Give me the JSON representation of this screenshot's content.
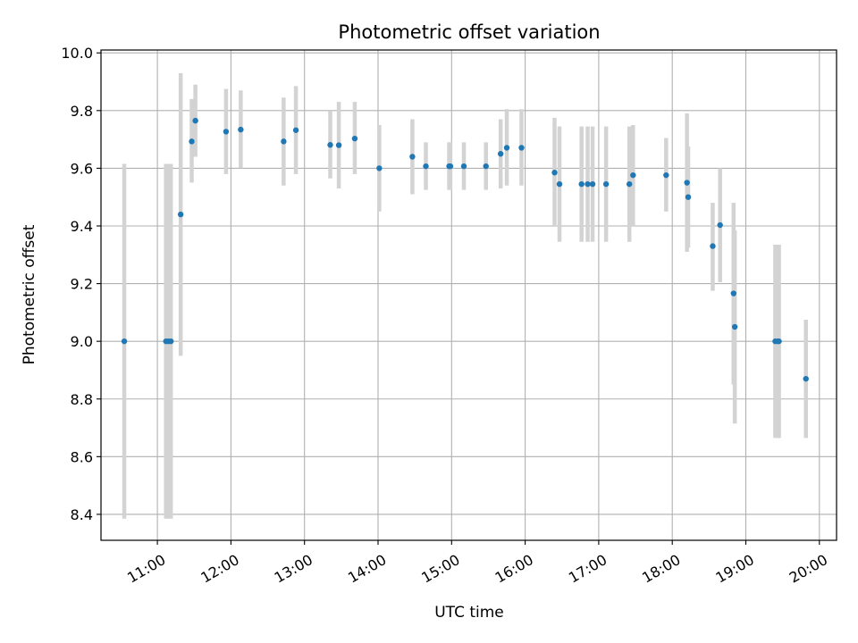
{
  "chart_data": {
    "type": "scatter",
    "title": "Photometric offset variation",
    "xlabel": "UTC time",
    "ylabel": "Photometric offset",
    "xlim": [
      "10:14",
      "20:14"
    ],
    "ylim": [
      8.31,
      10.01
    ],
    "x_ticks": [
      "11:00",
      "12:00",
      "13:00",
      "14:00",
      "15:00",
      "16:00",
      "17:00",
      "18:00",
      "19:00",
      "20:00"
    ],
    "y_ticks": [
      "8.4",
      "8.6",
      "8.8",
      "9.0",
      "9.2",
      "9.4",
      "9.6",
      "9.8",
      "10.0"
    ],
    "grid": true,
    "marker_color": "#1f77b4",
    "errorbar_color": "#d3d3d3",
    "points": [
      {
        "x": "10:33",
        "y": 9.0,
        "ylow": 8.385,
        "yhigh": 9.615
      },
      {
        "x": "11:07",
        "y": 9.0,
        "ylow": 8.385,
        "yhigh": 9.615
      },
      {
        "x": "11:09",
        "y": 9.0,
        "ylow": 8.385,
        "yhigh": 9.615
      },
      {
        "x": "11:11",
        "y": 9.0,
        "ylow": 8.385,
        "yhigh": 9.615
      },
      {
        "x": "11:19",
        "y": 9.44,
        "ylow": 8.95,
        "yhigh": 9.93
      },
      {
        "x": "11:28",
        "y": 9.693,
        "ylow": 9.55,
        "yhigh": 9.84
      },
      {
        "x": "11:31",
        "y": 9.765,
        "ylow": 9.64,
        "yhigh": 9.89
      },
      {
        "x": "11:56",
        "y": 9.727,
        "ylow": 9.58,
        "yhigh": 9.875
      },
      {
        "x": "12:08",
        "y": 9.734,
        "ylow": 9.6,
        "yhigh": 9.87
      },
      {
        "x": "12:43",
        "y": 9.693,
        "ylow": 9.54,
        "yhigh": 9.845
      },
      {
        "x": "12:53",
        "y": 9.732,
        "ylow": 9.58,
        "yhigh": 9.885
      },
      {
        "x": "13:21",
        "y": 9.681,
        "ylow": 9.565,
        "yhigh": 9.8
      },
      {
        "x": "13:28",
        "y": 9.68,
        "ylow": 9.53,
        "yhigh": 9.83
      },
      {
        "x": "13:41",
        "y": 9.703,
        "ylow": 9.58,
        "yhigh": 9.83
      },
      {
        "x": "14:01",
        "y": 9.6,
        "ylow": 9.45,
        "yhigh": 9.75
      },
      {
        "x": "14:28",
        "y": 9.64,
        "ylow": 9.51,
        "yhigh": 9.77
      },
      {
        "x": "14:39",
        "y": 9.607,
        "ylow": 9.525,
        "yhigh": 9.69
      },
      {
        "x": "14:58",
        "y": 9.607,
        "ylow": 9.525,
        "yhigh": 9.69
      },
      {
        "x": "14:59",
        "y": 9.607,
        "ylow": 9.525,
        "yhigh": 9.69
      },
      {
        "x": "15:10",
        "y": 9.607,
        "ylow": 9.525,
        "yhigh": 9.69
      },
      {
        "x": "15:28",
        "y": 9.607,
        "ylow": 9.525,
        "yhigh": 9.69
      },
      {
        "x": "15:40",
        "y": 9.65,
        "ylow": 9.53,
        "yhigh": 9.77
      },
      {
        "x": "15:45",
        "y": 9.671,
        "ylow": 9.54,
        "yhigh": 9.805
      },
      {
        "x": "15:57",
        "y": 9.671,
        "ylow": 9.54,
        "yhigh": 9.805
      },
      {
        "x": "16:24",
        "y": 9.585,
        "ylow": 9.4,
        "yhigh": 9.775
      },
      {
        "x": "16:28",
        "y": 9.545,
        "ylow": 9.345,
        "yhigh": 9.745
      },
      {
        "x": "16:46",
        "y": 9.545,
        "ylow": 9.345,
        "yhigh": 9.745
      },
      {
        "x": "16:51",
        "y": 9.545,
        "ylow": 9.345,
        "yhigh": 9.745
      },
      {
        "x": "16:55",
        "y": 9.545,
        "ylow": 9.345,
        "yhigh": 9.745
      },
      {
        "x": "17:06",
        "y": 9.545,
        "ylow": 9.345,
        "yhigh": 9.745
      },
      {
        "x": "17:25",
        "y": 9.545,
        "ylow": 9.345,
        "yhigh": 9.745
      },
      {
        "x": "17:28",
        "y": 9.576,
        "ylow": 9.4,
        "yhigh": 9.75
      },
      {
        "x": "17:55",
        "y": 9.576,
        "ylow": 9.45,
        "yhigh": 9.705
      },
      {
        "x": "18:12",
        "y": 9.55,
        "ylow": 9.31,
        "yhigh": 9.79
      },
      {
        "x": "18:13",
        "y": 9.5,
        "ylow": 9.325,
        "yhigh": 9.675
      },
      {
        "x": "18:33",
        "y": 9.33,
        "ylow": 9.175,
        "yhigh": 9.48
      },
      {
        "x": "18:39",
        "y": 9.403,
        "ylow": 9.205,
        "yhigh": 9.6
      },
      {
        "x": "18:50",
        "y": 9.166,
        "ylow": 8.85,
        "yhigh": 9.48
      },
      {
        "x": "18:51",
        "y": 9.05,
        "ylow": 8.715,
        "yhigh": 9.385
      },
      {
        "x": "19:24",
        "y": 9.0,
        "ylow": 8.665,
        "yhigh": 9.335
      },
      {
        "x": "19:26",
        "y": 9.0,
        "ylow": 8.665,
        "yhigh": 9.335
      },
      {
        "x": "19:27",
        "y": 9.0,
        "ylow": 8.665,
        "yhigh": 9.335
      },
      {
        "x": "19:49",
        "y": 8.87,
        "ylow": 8.665,
        "yhigh": 9.075
      }
    ]
  }
}
